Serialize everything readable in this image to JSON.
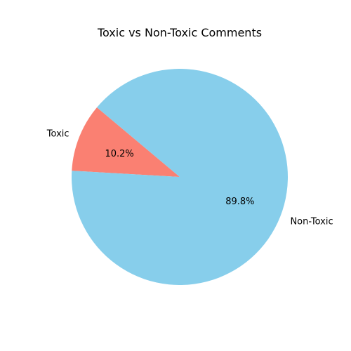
{
  "chart_data": {
    "type": "pie",
    "title": "Toxic vs Non-Toxic Comments",
    "slices": [
      {
        "label": "Toxic",
        "value": 10.2,
        "pct_label": "10.2%",
        "color": "#fa8072"
      },
      {
        "label": "Non-Toxic",
        "value": 89.8,
        "pct_label": "89.8%",
        "color": "#87ceeb"
      }
    ],
    "start_angle_deg": 140,
    "direction": "counterclockwise",
    "legend": "none"
  }
}
